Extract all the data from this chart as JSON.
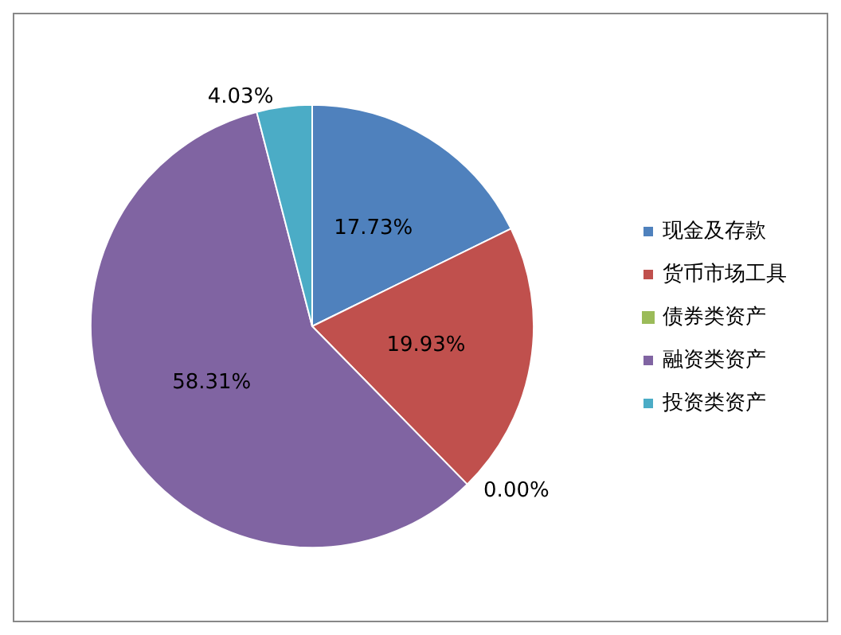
{
  "chart_data": {
    "type": "pie",
    "categories": [
      "现金及存款",
      "货币市场工具",
      "债券类资产",
      "融资类资产",
      "投资类资产"
    ],
    "values": [
      17.73,
      19.93,
      0.0,
      58.31,
      4.03
    ],
    "colors": [
      "#4f81bd",
      "#c0504d",
      "#9bbb59",
      "#8064a2",
      "#4bacc6"
    ],
    "value_labels": [
      "17.73%",
      "19.93%",
      "0.00%",
      "58.31%",
      "4.03%"
    ],
    "legend": "right"
  }
}
